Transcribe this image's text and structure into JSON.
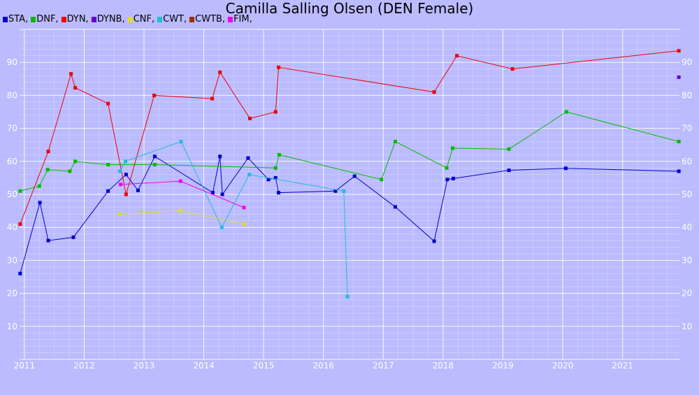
{
  "chart_data": {
    "type": "line",
    "title": "Camilla Salling Olsen (DEN Female)",
    "xlabel": "",
    "ylabel": "",
    "xlim": [
      2010.92,
      2021.95
    ],
    "ylim": [
      0,
      100
    ],
    "grid": true,
    "legend_position": "top-left",
    "x_ticks": [
      "2011",
      "2012",
      "2013",
      "2014",
      "2015",
      "2016",
      "2017",
      "2018",
      "2019",
      "2020",
      "2021"
    ],
    "y_ticks": [
      "10",
      "20",
      "30",
      "40",
      "50",
      "60",
      "70",
      "80",
      "90"
    ],
    "colors": {
      "background": "#bbbbff",
      "grid": "#ffffff"
    },
    "legend": [
      {
        "label": "STA,",
        "color": "#0000cc"
      },
      {
        "label": "DNF,",
        "color": "#00bb00"
      },
      {
        "label": "DYN,",
        "color": "#ee0000"
      },
      {
        "label": "DYNB,",
        "color": "#6600cc"
      },
      {
        "label": "CNF,",
        "color": "#dddd22"
      },
      {
        "label": "CWT,",
        "color": "#22bbdd"
      },
      {
        "label": "CWTB,",
        "color": "#993300"
      },
      {
        "label": "FIM,",
        "color": "#ee00ee"
      }
    ],
    "series": [
      {
        "name": "STA",
        "color": "#0000cc",
        "points": [
          [
            2010.93,
            26
          ],
          [
            2011.26,
            47.5
          ],
          [
            2011.4,
            36
          ],
          [
            2011.82,
            37
          ],
          [
            2012.4,
            51
          ],
          [
            2012.7,
            56
          ],
          [
            2012.9,
            51.2
          ],
          [
            2013.18,
            61.5
          ],
          [
            2014.15,
            50.5
          ],
          [
            2014.27,
            61.5
          ],
          [
            2014.31,
            50
          ],
          [
            2014.74,
            61
          ],
          [
            2015.08,
            54.5
          ],
          [
            2015.2,
            55
          ],
          [
            2015.25,
            50.5
          ],
          [
            2016.2,
            51
          ],
          [
            2016.52,
            55.5
          ],
          [
            2017.2,
            46.2
          ],
          [
            2017.85,
            35.8
          ],
          [
            2018.07,
            54.5
          ],
          [
            2018.17,
            54.8
          ],
          [
            2019.1,
            57.3
          ],
          [
            2020.05,
            57.9
          ],
          [
            2021.94,
            57
          ]
        ]
      },
      {
        "name": "DNF",
        "color": "#00bb00",
        "points": [
          [
            2010.93,
            51
          ],
          [
            2011.25,
            52.5
          ],
          [
            2011.39,
            57.5
          ],
          [
            2011.76,
            57
          ],
          [
            2011.85,
            60
          ],
          [
            2012.4,
            59
          ],
          [
            2013.18,
            59
          ],
          [
            2015.2,
            58
          ],
          [
            2015.26,
            62
          ],
          [
            2016.97,
            54.5
          ],
          [
            2017.2,
            66
          ],
          [
            2018.06,
            58
          ],
          [
            2018.16,
            64
          ],
          [
            2019.1,
            63.7
          ],
          [
            2020.06,
            75
          ],
          [
            2021.94,
            66
          ]
        ]
      },
      {
        "name": "DYN",
        "color": "#ee0000",
        "points": [
          [
            2010.93,
            41
          ],
          [
            2011.4,
            63
          ],
          [
            2011.78,
            86.5
          ],
          [
            2011.85,
            82.3
          ],
          [
            2012.4,
            77.5
          ],
          [
            2012.7,
            50
          ],
          [
            2013.17,
            80
          ],
          [
            2014.14,
            79
          ],
          [
            2014.27,
            87
          ],
          [
            2014.77,
            73
          ],
          [
            2015.2,
            75
          ],
          [
            2015.25,
            88.5
          ],
          [
            2017.85,
            81
          ],
          [
            2018.23,
            92
          ],
          [
            2019.16,
            88
          ],
          [
            2021.94,
            93.5
          ]
        ]
      },
      {
        "name": "DYNB",
        "color": "#6600cc",
        "points": [
          [
            2021.94,
            85.5
          ]
        ]
      },
      {
        "name": "CNF",
        "color": "#dddd22",
        "points": [
          [
            2012.6,
            44
          ],
          [
            2013.61,
            45
          ],
          [
            2014.67,
            41
          ]
        ]
      },
      {
        "name": "CWT",
        "color": "#22bbdd",
        "points": [
          [
            2012.6,
            57
          ],
          [
            2012.69,
            60
          ],
          [
            2013.62,
            66
          ],
          [
            2014.3,
            40
          ],
          [
            2014.76,
            56
          ],
          [
            2016.34,
            51
          ],
          [
            2016.4,
            19
          ]
        ]
      },
      {
        "name": "CWTB",
        "color": "#993300",
        "points": []
      },
      {
        "name": "FIM",
        "color": "#ee00ee",
        "points": [
          [
            2012.61,
            53
          ],
          [
            2013.61,
            54
          ],
          [
            2014.67,
            46
          ]
        ]
      }
    ]
  }
}
